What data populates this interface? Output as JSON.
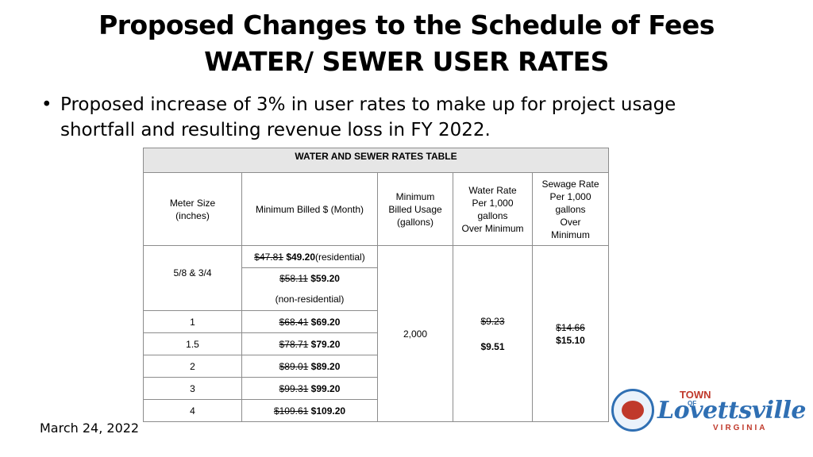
{
  "slide": {
    "title_line1": "Proposed Changes to the Schedule of Fees",
    "title_line2": "WATER/ SEWER USER RATES",
    "bullet_symbol": "•",
    "bullet_text": "Proposed increase of 3% in user rates to make up for project usage shortfall and resulting revenue loss in FY 2022.",
    "date": "March 24, 2022"
  },
  "table": {
    "caption": "WATER AND SEWER RATES TABLE",
    "headers": {
      "meter": [
        "Meter Size",
        "(inches)"
      ],
      "min_billed": "Minimum Billed $ (Month)",
      "min_usage": [
        "Minimum",
        "Billed Usage",
        "(gallons)"
      ],
      "water_rate": [
        "Water Rate",
        "Per 1,000",
        "gallons",
        "Over Minimum"
      ],
      "sewage_rate": [
        "Sewage Rate",
        "Per 1,000",
        "gallons",
        "Over",
        "Minimum"
      ]
    },
    "row_58": {
      "meter": "5/8 & 3/4",
      "res_old": "$47.81",
      "res_new": "$49.20",
      "res_note": "(residential)",
      "nonres_old": "$58.11",
      "nonres_new": "$59.20",
      "nonres_note": "(non-residential)"
    },
    "rows": [
      {
        "meter": "1",
        "old": "$68.41",
        "new": "$69.20"
      },
      {
        "meter": "1.5",
        "old": "$78.71",
        "new": "$79.20"
      },
      {
        "meter": "2",
        "old": "$89.01",
        "new": "$89.20"
      },
      {
        "meter": "3",
        "old": "$99.31",
        "new": "$99.20"
      },
      {
        "meter": "4",
        "old": "$109.61",
        "new": "$109.20"
      }
    ],
    "min_usage_value": "2,000",
    "water_old": "$9.23",
    "water_new": "$9.51",
    "sewage_old": "$14.66",
    "sewage_new": "$15.10"
  },
  "logo": {
    "town": "TOWN",
    "of": "OF",
    "name": "Lovettsville",
    "state": "VIRGINIA",
    "brand_blue": "#2f6fb3",
    "brand_red": "#c0392b"
  }
}
